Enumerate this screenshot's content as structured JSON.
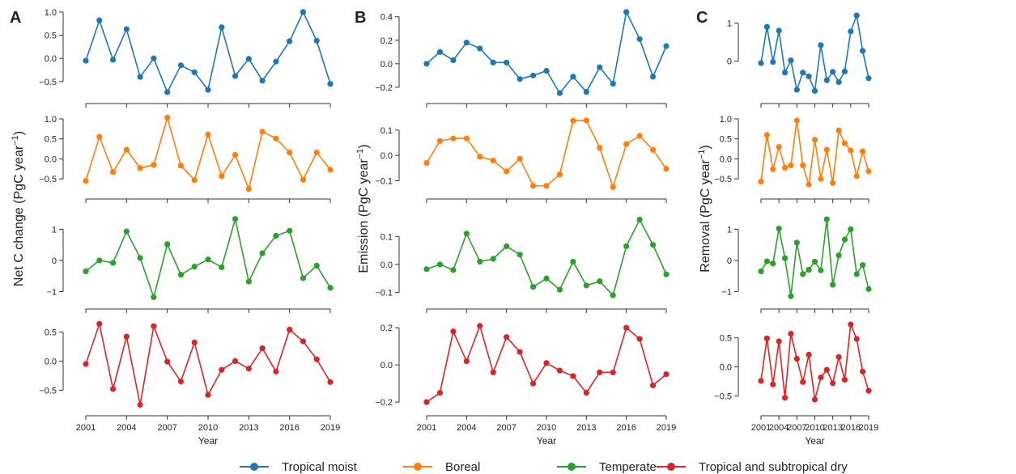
{
  "chart_data": {
    "type": "line",
    "legend_placement": "bottom-center",
    "series_colors": {
      "Tropical moist": "#1f77b4",
      "Boreal": "#ff7f0e",
      "Temperate": "#2ca02c",
      "Tropical and subtropical dry": "#d62728"
    },
    "legend": [
      "Tropical moist",
      "Boreal",
      "Temperate",
      "Tropical and subtropical dry"
    ],
    "x": [
      2001,
      2002,
      2003,
      2004,
      2005,
      2006,
      2007,
      2008,
      2009,
      2010,
      2011,
      2012,
      2013,
      2014,
      2015,
      2016,
      2017,
      2018,
      2019
    ],
    "x_ticks": [
      2001,
      2004,
      2007,
      2010,
      2013,
      2016,
      2019
    ],
    "xlabel": "Year",
    "panels": [
      {
        "letter": "A",
        "ylabel_main": "Net C change (PgC year",
        "ylabel_sup": "−1",
        "ylabel_end": ")",
        "subplots": [
          {
            "series": "Tropical moist",
            "ylim": [
              -0.8,
              1.05
            ],
            "yticks": [
              -0.5,
              0.0,
              0.5,
              1.0
            ],
            "ytick_labels": [
              "−0.5",
              "0.0",
              "0.5",
              "1.0"
            ],
            "values": [
              -0.05,
              0.82,
              -0.03,
              0.63,
              -0.4,
              0.0,
              -0.73,
              -0.15,
              -0.3,
              -0.68,
              0.67,
              -0.38,
              -0.01,
              -0.48,
              -0.07,
              0.37,
              1.0,
              0.38,
              -0.55
            ]
          },
          {
            "series": "Boreal",
            "ylim": [
              -0.8,
              1.1
            ],
            "yticks": [
              -0.5,
              0.0,
              0.5,
              1.0
            ],
            "ytick_labels": [
              "−0.5",
              "0.0",
              "0.5",
              "1.0"
            ],
            "values": [
              -0.55,
              0.55,
              -0.33,
              0.23,
              -0.23,
              -0.15,
              1.03,
              -0.17,
              -0.53,
              0.61,
              -0.43,
              0.1,
              -0.75,
              0.68,
              0.51,
              0.16,
              -0.52,
              0.16,
              -0.27
            ]
          },
          {
            "series": "Temperate",
            "ylim": [
              -1.3,
              1.4
            ],
            "yticks": [
              -1,
              0,
              1
            ],
            "ytick_labels": [
              "−1",
              "0",
              "1"
            ],
            "values": [
              -0.35,
              0.0,
              -0.08,
              0.93,
              0.08,
              -1.18,
              0.52,
              -0.46,
              -0.2,
              0.03,
              -0.22,
              1.33,
              -0.68,
              0.23,
              0.79,
              0.95,
              -0.57,
              -0.17,
              -0.88
            ]
          },
          {
            "series": "Tropical and subtropical dry",
            "ylim": [
              -0.8,
              0.7
            ],
            "yticks": [
              -0.5,
              0.0,
              0.5
            ],
            "ytick_labels": [
              "−0.5",
              "0.0",
              "0.5"
            ],
            "values": [
              -0.05,
              0.64,
              -0.48,
              0.42,
              -0.75,
              0.6,
              -0.01,
              -0.35,
              0.32,
              -0.58,
              -0.15,
              0.0,
              -0.13,
              0.22,
              -0.18,
              0.54,
              0.34,
              0.03,
              -0.36
            ]
          }
        ]
      },
      {
        "letter": "B",
        "ylabel_main": "Emission (PgC year",
        "ylabel_sup": "−1",
        "ylabel_end": ")",
        "subplots": [
          {
            "series": "Tropical moist",
            "ylim": [
              -0.27,
              0.46
            ],
            "yticks": [
              -0.2,
              0.0,
              0.2,
              0.4
            ],
            "ytick_labels": [
              "−0.2",
              "0.0",
              "0.2",
              "0.4"
            ],
            "values": [
              0.0,
              0.1,
              0.03,
              0.18,
              0.13,
              0.01,
              0.01,
              -0.13,
              -0.1,
              -0.06,
              -0.25,
              -0.11,
              -0.24,
              -0.03,
              -0.17,
              0.44,
              0.21,
              -0.11,
              0.15
            ]
          },
          {
            "series": "Boreal",
            "ylim": [
              -0.14,
              0.16
            ],
            "yticks": [
              -0.1,
              0.0,
              0.1
            ],
            "ytick_labels": [
              "−0.1",
              "0.0",
              "0.1"
            ],
            "values": [
              -0.03,
              0.057,
              0.067,
              0.067,
              -0.005,
              -0.02,
              -0.063,
              -0.013,
              -0.12,
              -0.12,
              -0.075,
              0.137,
              0.138,
              0.03,
              -0.125,
              0.045,
              0.077,
              0.022,
              -0.053
            ]
          },
          {
            "series": "Temperate",
            "ylim": [
              -0.13,
              0.17
            ],
            "yticks": [
              -0.1,
              0.0,
              0.1
            ],
            "ytick_labels": [
              "−0.1",
              "0.0",
              "0.1"
            ],
            "values": [
              -0.017,
              0.0,
              -0.02,
              0.11,
              0.01,
              0.02,
              0.065,
              0.035,
              -0.08,
              -0.05,
              -0.09,
              0.01,
              -0.075,
              -0.06,
              -0.11,
              0.065,
              0.16,
              0.07,
              -0.035
            ]
          },
          {
            "series": "Tropical and subtropical dry",
            "ylim": [
              -0.23,
              0.24
            ],
            "yticks": [
              -0.2,
              0.0,
              0.2
            ],
            "ytick_labels": [
              "−0.2",
              "0.0",
              "0.2"
            ],
            "values": [
              -0.2,
              -0.15,
              0.18,
              0.02,
              0.21,
              -0.04,
              0.15,
              0.07,
              -0.1,
              0.01,
              -0.03,
              -0.06,
              -0.15,
              -0.04,
              -0.04,
              0.2,
              0.14,
              -0.11,
              -0.05
            ]
          }
        ]
      },
      {
        "letter": "C",
        "ylabel_main": "Removal (PgC year",
        "ylabel_sup": "−1",
        "ylabel_end": ")",
        "subplots": [
          {
            "series": "Tropical moist",
            "ylim": [
              -0.9,
              1.35
            ],
            "yticks": [
              0,
              1
            ],
            "ytick_labels": [
              "0",
              "1"
            ],
            "values": [
              -0.05,
              0.9,
              -0.02,
              0.8,
              -0.3,
              0.02,
              -0.75,
              -0.3,
              -0.4,
              -0.78,
              0.42,
              -0.5,
              -0.28,
              -0.55,
              -0.27,
              0.78,
              1.2,
              0.27,
              -0.45
            ]
          },
          {
            "series": "Boreal",
            "ylim": [
              -0.8,
              1.1
            ],
            "yticks": [
              -0.5,
              0.0,
              0.5,
              1.0
            ],
            "ytick_labels": [
              "−0.5",
              "0.0",
              "0.5",
              "1.0"
            ],
            "values": [
              -0.57,
              0.6,
              -0.26,
              0.3,
              -0.22,
              -0.16,
              0.96,
              -0.16,
              -0.64,
              0.48,
              -0.5,
              0.23,
              -0.6,
              0.71,
              0.39,
              0.21,
              -0.43,
              0.19,
              -0.31
            ]
          },
          {
            "series": "Temperate",
            "ylim": [
              -1.3,
              1.4
            ],
            "yticks": [
              -1,
              0,
              1
            ],
            "ytick_labels": [
              "−1",
              "0",
              "1"
            ],
            "values": [
              -0.35,
              -0.03,
              -0.1,
              1.02,
              0.07,
              -1.15,
              0.57,
              -0.44,
              -0.3,
              -0.04,
              -0.32,
              1.32,
              -0.78,
              0.16,
              0.67,
              1.0,
              -0.44,
              -0.15,
              -0.92
            ]
          },
          {
            "series": "Tropical and subtropical dry",
            "ylim": [
              -0.7,
              0.8
            ],
            "yticks": [
              -0.5,
              0.0,
              0.5
            ],
            "ytick_labels": [
              "−0.5",
              "0.0",
              "0.5"
            ],
            "values": [
              -0.24,
              0.49,
              -0.3,
              0.44,
              -0.53,
              0.57,
              0.14,
              -0.26,
              0.21,
              -0.56,
              -0.18,
              -0.05,
              -0.28,
              0.17,
              -0.22,
              0.73,
              0.48,
              -0.08,
              -0.41
            ]
          }
        ]
      }
    ]
  }
}
